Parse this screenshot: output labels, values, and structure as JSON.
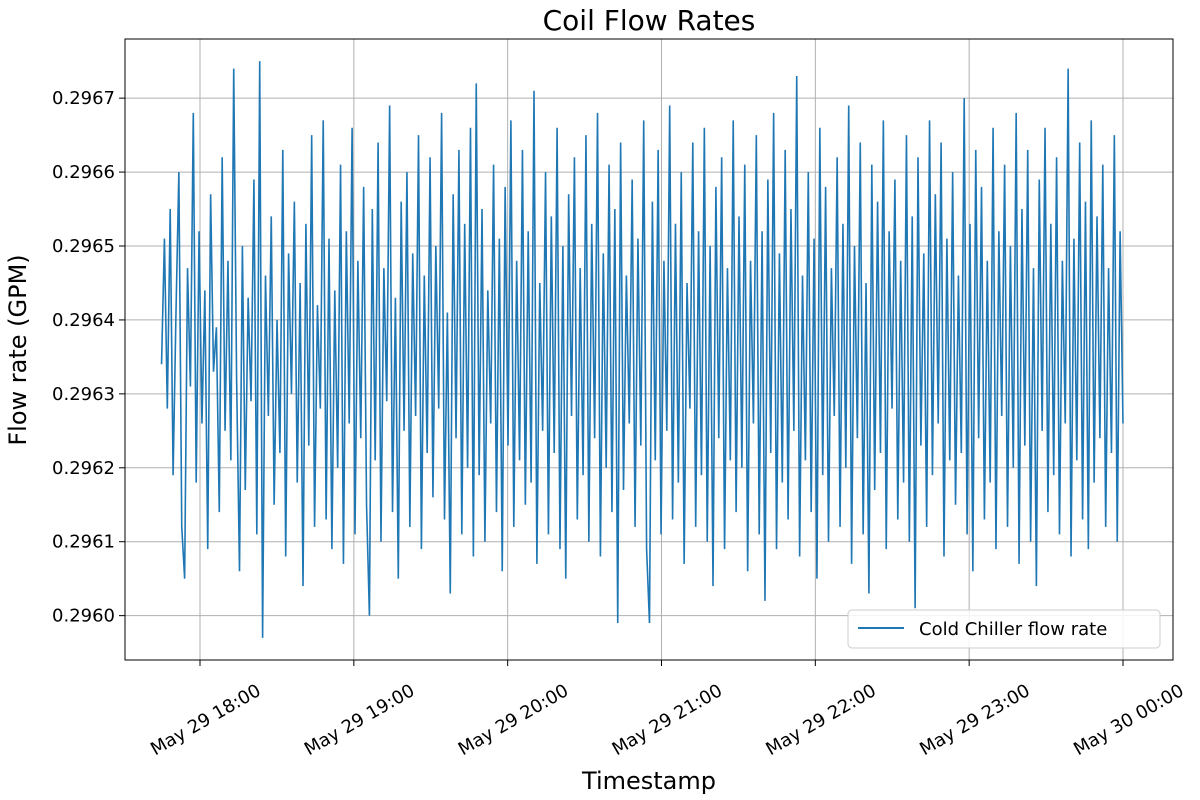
{
  "chart_data": {
    "type": "line",
    "title": "Coil Flow Rates",
    "xlabel": "Timestamp",
    "ylabel": "Flow rate (GPM)",
    "x_range": [
      "2024-05-29T17:45:00",
      "2024-05-30T00:00:00"
    ],
    "x_ticks": [
      {
        "t": "2024-05-29T18:00:00",
        "label": "May 29 18:00"
      },
      {
        "t": "2024-05-29T19:00:00",
        "label": "May 29 19:00"
      },
      {
        "t": "2024-05-29T20:00:00",
        "label": "May 29 20:00"
      },
      {
        "t": "2024-05-29T21:00:00",
        "label": "May 29 21:00"
      },
      {
        "t": "2024-05-29T22:00:00",
        "label": "May 29 22:00"
      },
      {
        "t": "2024-05-29T23:00:00",
        "label": "May 29 23:00"
      },
      {
        "t": "2024-05-30T00:00:00",
        "label": "May 30 00:00"
      }
    ],
    "ylim": [
      0.29594,
      0.29678
    ],
    "y_ticks": [
      0.296,
      0.2961,
      0.2962,
      0.2963,
      0.2964,
      0.2965,
      0.2966,
      0.2967
    ],
    "y_tick_labels": [
      "0.2960",
      "0.2961",
      "0.2962",
      "0.2963",
      "0.2964",
      "0.2965",
      "0.2966",
      "0.2967"
    ],
    "grid": true,
    "legend_position": "lower-right",
    "series": [
      {
        "name": "Cold Chiller flow rate",
        "color": "#1f77b4",
        "x_start": "2024-05-29T17:45:00",
        "x_end": "2024-05-30T00:00:00",
        "values": [
          0.29634,
          0.29651,
          0.29628,
          0.29655,
          0.29619,
          0.29641,
          0.2966,
          0.29612,
          0.29605,
          0.29647,
          0.29631,
          0.29668,
          0.29618,
          0.29652,
          0.29626,
          0.29644,
          0.29609,
          0.29657,
          0.29633,
          0.29639,
          0.29614,
          0.29662,
          0.29625,
          0.29648,
          0.29621,
          0.29674,
          0.29632,
          0.29606,
          0.2965,
          0.29617,
          0.29643,
          0.29629,
          0.29659,
          0.29611,
          0.29675,
          0.29597,
          0.29646,
          0.29627,
          0.29654,
          0.29615,
          0.2964,
          0.29622,
          0.29663,
          0.29608,
          0.29649,
          0.2963,
          0.29656,
          0.29618,
          0.29645,
          0.29604,
          0.29653,
          0.29623,
          0.29665,
          0.29612,
          0.29642,
          0.29628,
          0.29667,
          0.29613,
          0.29651,
          0.29609,
          0.29644,
          0.2962,
          0.29661,
          0.29607,
          0.29652,
          0.29626,
          0.29666,
          0.29611,
          0.29648,
          0.29624,
          0.29658,
          0.29615,
          0.296,
          0.29655,
          0.29621,
          0.29664,
          0.2961,
          0.29647,
          0.29629,
          0.29669,
          0.29614,
          0.29643,
          0.29605,
          0.29656,
          0.29625,
          0.2966,
          0.29612,
          0.29649,
          0.29627,
          0.29665,
          0.29609,
          0.29646,
          0.29622,
          0.29662,
          0.29616,
          0.2965,
          0.29628,
          0.29668,
          0.29613,
          0.29641,
          0.29603,
          0.29657,
          0.29624,
          0.29663,
          0.29611,
          0.29653,
          0.2962,
          0.29666,
          0.29608,
          0.29672,
          0.29619,
          0.29655,
          0.2961,
          0.29644,
          0.29626,
          0.29661,
          0.29614,
          0.29651,
          0.29606,
          0.29658,
          0.29623,
          0.29667,
          0.29612,
          0.29648,
          0.29621,
          0.29663,
          0.29615,
          0.29652,
          0.29618,
          0.29671,
          0.29607,
          0.29645,
          0.29625,
          0.2966,
          0.29611,
          0.29654,
          0.29622,
          0.29666,
          0.29609,
          0.2965,
          0.29605,
          0.29657,
          0.29627,
          0.29662,
          0.29613,
          0.29647,
          0.29619,
          0.29665,
          0.2961,
          0.29653,
          0.29624,
          0.29668,
          0.29608,
          0.29649,
          0.2962,
          0.29661,
          0.29614,
          0.29655,
          0.29599,
          0.29664,
          0.29617,
          0.29646,
          0.29626,
          0.29659,
          0.29612,
          0.29651,
          0.29623,
          0.29667,
          0.29609,
          0.29599,
          0.29656,
          0.29621,
          0.29663,
          0.29611,
          0.29648,
          0.29625,
          0.29669,
          0.29613,
          0.29653,
          0.29618,
          0.2966,
          0.29607,
          0.29645,
          0.29628,
          0.29664,
          0.29612,
          0.29652,
          0.29619,
          0.29666,
          0.2961,
          0.2965,
          0.29604,
          0.29658,
          0.29624,
          0.29662,
          0.29609,
          0.29647,
          0.29621,
          0.29667,
          0.29614,
          0.29654,
          0.2962,
          0.29661,
          0.29606,
          0.29648,
          0.29626,
          0.29665,
          0.29611,
          0.29652,
          0.29602,
          0.29659,
          0.29622,
          0.29668,
          0.29609,
          0.29649,
          0.29618,
          0.29663,
          0.29613,
          0.29655,
          0.29625,
          0.29673,
          0.29608,
          0.29646,
          0.29621,
          0.2966,
          0.29614,
          0.29651,
          0.29605,
          0.29666,
          0.29619,
          0.29658,
          0.2961,
          0.29647,
          0.29627,
          0.29662,
          0.29612,
          0.29653,
          0.2962,
          0.29669,
          0.29607,
          0.2965,
          0.29624,
          0.29664,
          0.29611,
          0.29645,
          0.29603,
          0.29661,
          0.29617,
          0.29656,
          0.29622,
          0.29667,
          0.29609,
          0.29652,
          0.29628,
          0.29659,
          0.29613,
          0.29648,
          0.29618,
          0.29665,
          0.2961,
          0.29654,
          0.29601,
          0.29662,
          0.29623,
          0.29649,
          0.29612,
          0.29667,
          0.29619,
          0.29657,
          0.29626,
          0.29664,
          0.29608,
          0.29651,
          0.29621,
          0.2966,
          0.29615,
          0.29646,
          0.29622,
          0.2967,
          0.29611,
          0.29653,
          0.29606,
          0.29663,
          0.29624,
          0.29658,
          0.29613,
          0.29648,
          0.29618,
          0.29666,
          0.29609,
          0.29652,
          0.29627,
          0.29661,
          0.29612,
          0.2965,
          0.2962,
          0.29668,
          0.29607,
          0.29655,
          0.29623,
          0.29663,
          0.2961,
          0.29647,
          0.29604,
          0.29659,
          0.29625,
          0.29666,
          0.29614,
          0.29653,
          0.29619,
          0.29662,
          0.29611,
          0.29648,
          0.29626,
          0.29674,
          0.29608,
          0.29651,
          0.29621,
          0.29664,
          0.29613,
          0.29656,
          0.29609,
          0.29667,
          0.29618,
          0.29654,
          0.29624,
          0.29661,
          0.29612,
          0.29647,
          0.29622,
          0.29665,
          0.2961,
          0.29652,
          0.29626
        ]
      }
    ]
  }
}
